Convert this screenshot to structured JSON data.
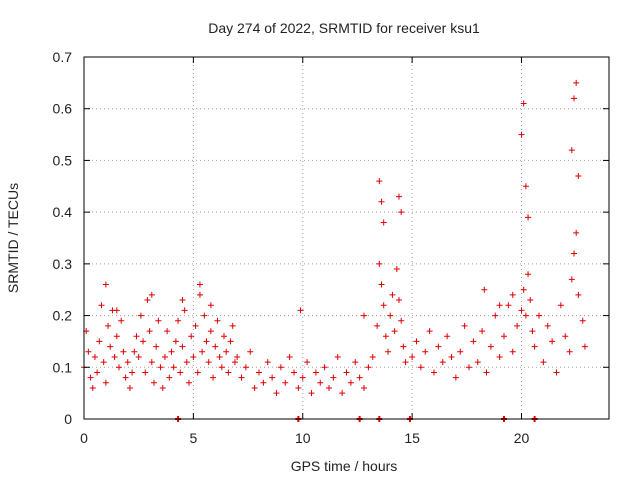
{
  "chart_data": {
    "type": "scatter",
    "title": "Day 274 of 2022, SRMTID for receiver ksu1",
    "xlabel": "GPS time / hours",
    "ylabel": "SRMTID / TECUs",
    "xlim": [
      0,
      24
    ],
    "ylim": [
      0,
      0.7
    ],
    "x_ticks": [
      0,
      5,
      10,
      15,
      20
    ],
    "y_ticks": [
      0,
      0.1,
      0.2,
      0.3,
      0.4,
      0.5,
      0.6,
      0.7
    ],
    "grid": true,
    "marker": "+",
    "series": [
      {
        "name": "SRMTID",
        "color": "#e00000",
        "x": [
          0.0,
          0.1,
          0.2,
          0.3,
          0.4,
          0.5,
          0.6,
          0.7,
          0.8,
          0.9,
          1.0,
          1.1,
          1.2,
          1.3,
          1.4,
          1.5,
          1.6,
          1.7,
          1.8,
          1.9,
          2.0,
          2.1,
          2.2,
          2.3,
          2.4,
          2.5,
          2.6,
          2.7,
          2.8,
          2.9,
          3.0,
          3.1,
          3.2,
          3.3,
          3.4,
          3.5,
          3.6,
          3.7,
          3.8,
          3.9,
          4.0,
          4.1,
          4.2,
          4.3,
          4.4,
          4.5,
          4.6,
          4.7,
          4.8,
          4.9,
          5.0,
          5.1,
          5.2,
          5.3,
          5.4,
          5.5,
          5.6,
          5.7,
          5.8,
          5.9,
          6.0,
          6.1,
          6.2,
          6.3,
          6.4,
          6.5,
          6.6,
          6.7,
          6.8,
          6.9,
          7.0,
          7.2,
          7.4,
          7.6,
          7.8,
          8.0,
          8.2,
          8.4,
          8.6,
          8.8,
          9.0,
          9.2,
          9.4,
          9.6,
          9.8,
          10.0,
          10.2,
          10.4,
          10.6,
          10.8,
          11.0,
          11.2,
          11.4,
          11.6,
          11.8,
          12.0,
          12.2,
          12.4,
          12.6,
          12.8,
          13.0,
          13.2,
          13.4,
          13.5,
          13.6,
          13.7,
          13.8,
          13.9,
          14.0,
          14.1,
          14.2,
          14.3,
          14.4,
          14.5,
          14.6,
          14.7,
          15.0,
          15.2,
          15.4,
          15.6,
          15.8,
          16.0,
          16.2,
          16.4,
          16.6,
          16.8,
          17.0,
          17.2,
          17.4,
          17.6,
          17.8,
          18.0,
          18.2,
          18.4,
          18.6,
          18.8,
          19.0,
          19.2,
          19.4,
          19.6,
          19.8,
          20.0,
          20.1,
          20.2,
          20.3,
          20.4,
          20.5,
          20.6,
          20.8,
          21.0,
          21.2,
          21.4,
          21.6,
          21.8,
          22.0,
          22.2,
          22.3,
          22.4,
          22.5,
          22.6,
          22.8,
          22.9,
          13.5,
          13.6,
          13.7,
          14.4,
          14.5,
          20.0,
          20.1,
          20.2,
          20.3,
          22.3,
          22.4,
          22.5,
          22.6,
          1.0,
          1.5,
          3.1,
          4.5,
          5.3,
          5.8,
          9.9,
          12.8,
          18.3,
          19.0,
          19.6
        ],
        "y": [
          0.1,
          0.17,
          0.13,
          0.08,
          0.06,
          0.12,
          0.09,
          0.15,
          0.22,
          0.11,
          0.07,
          0.18,
          0.14,
          0.21,
          0.12,
          0.16,
          0.1,
          0.19,
          0.13,
          0.08,
          0.11,
          0.06,
          0.09,
          0.13,
          0.16,
          0.12,
          0.2,
          0.15,
          0.09,
          0.23,
          0.17,
          0.11,
          0.07,
          0.14,
          0.19,
          0.1,
          0.06,
          0.12,
          0.17,
          0.08,
          0.13,
          0.1,
          0.15,
          0.19,
          0.09,
          0.14,
          0.21,
          0.11,
          0.07,
          0.16,
          0.12,
          0.18,
          0.09,
          0.24,
          0.13,
          0.2,
          0.15,
          0.11,
          0.17,
          0.08,
          0.14,
          0.19,
          0.12,
          0.1,
          0.16,
          0.13,
          0.09,
          0.15,
          0.18,
          0.11,
          0.12,
          0.08,
          0.1,
          0.13,
          0.06,
          0.09,
          0.07,
          0.11,
          0.08,
          0.05,
          0.1,
          0.07,
          0.12,
          0.09,
          0.06,
          0.08,
          0.11,
          0.05,
          0.09,
          0.07,
          0.1,
          0.06,
          0.08,
          0.12,
          0.05,
          0.09,
          0.07,
          0.11,
          0.08,
          0.06,
          0.1,
          0.12,
          0.18,
          0.3,
          0.26,
          0.22,
          0.16,
          0.13,
          0.2,
          0.24,
          0.17,
          0.29,
          0.23,
          0.19,
          0.14,
          0.11,
          0.12,
          0.15,
          0.1,
          0.13,
          0.17,
          0.09,
          0.14,
          0.11,
          0.16,
          0.12,
          0.08,
          0.13,
          0.18,
          0.1,
          0.15,
          0.11,
          0.17,
          0.09,
          0.14,
          0.2,
          0.12,
          0.16,
          0.22,
          0.13,
          0.18,
          0.21,
          0.25,
          0.2,
          0.28,
          0.23,
          0.17,
          0.14,
          0.2,
          0.11,
          0.18,
          0.15,
          0.09,
          0.22,
          0.16,
          0.13,
          0.27,
          0.32,
          0.36,
          0.24,
          0.19,
          0.14,
          0.46,
          0.42,
          0.38,
          0.43,
          0.4,
          0.55,
          0.61,
          0.45,
          0.39,
          0.52,
          0.62,
          0.65,
          0.47,
          0.26,
          0.21,
          0.24,
          0.23,
          0.26,
          0.22,
          0.21,
          0.2,
          0.25,
          0.22,
          0.24
        ]
      }
    ],
    "zero_markers_x": [
      4.3,
      9.8,
      12.6,
      13.5,
      14.9,
      19.2,
      20.6
    ]
  }
}
